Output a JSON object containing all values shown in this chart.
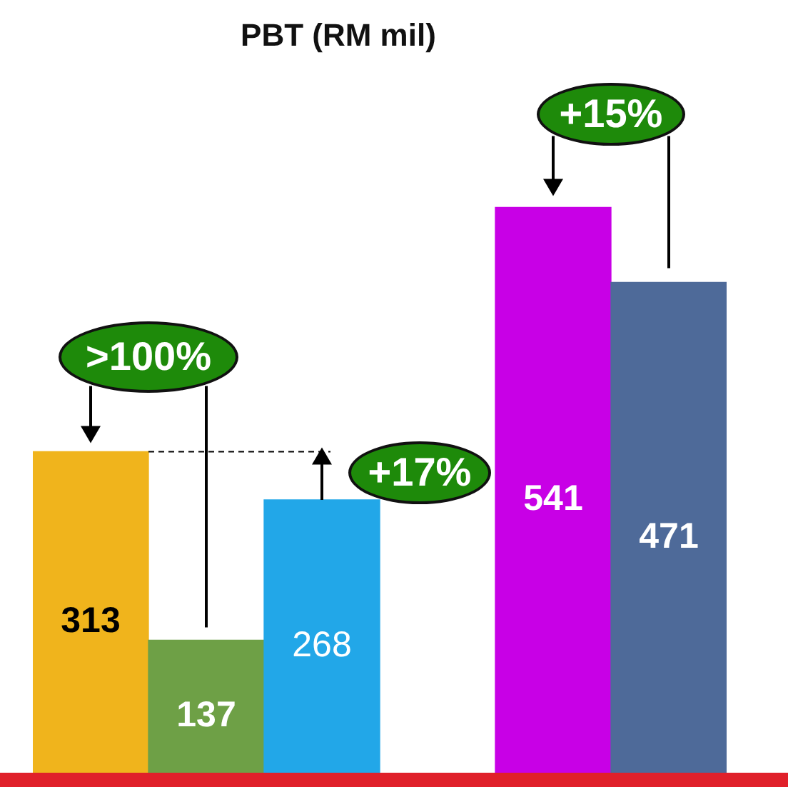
{
  "chart_data": {
    "type": "bar",
    "title": "PBT (RM mil)",
    "categories": [
      null,
      null,
      null,
      null,
      null
    ],
    "values": [
      313,
      137,
      268,
      541,
      471
    ],
    "colors": [
      "#f0b41c",
      "#6ea046",
      "#22a7e8",
      "#c800e6",
      "#4e6a99"
    ],
    "data_labels": true,
    "legend": false,
    "annotations": [
      ">100%",
      "+17%",
      "+15%"
    ]
  }
}
